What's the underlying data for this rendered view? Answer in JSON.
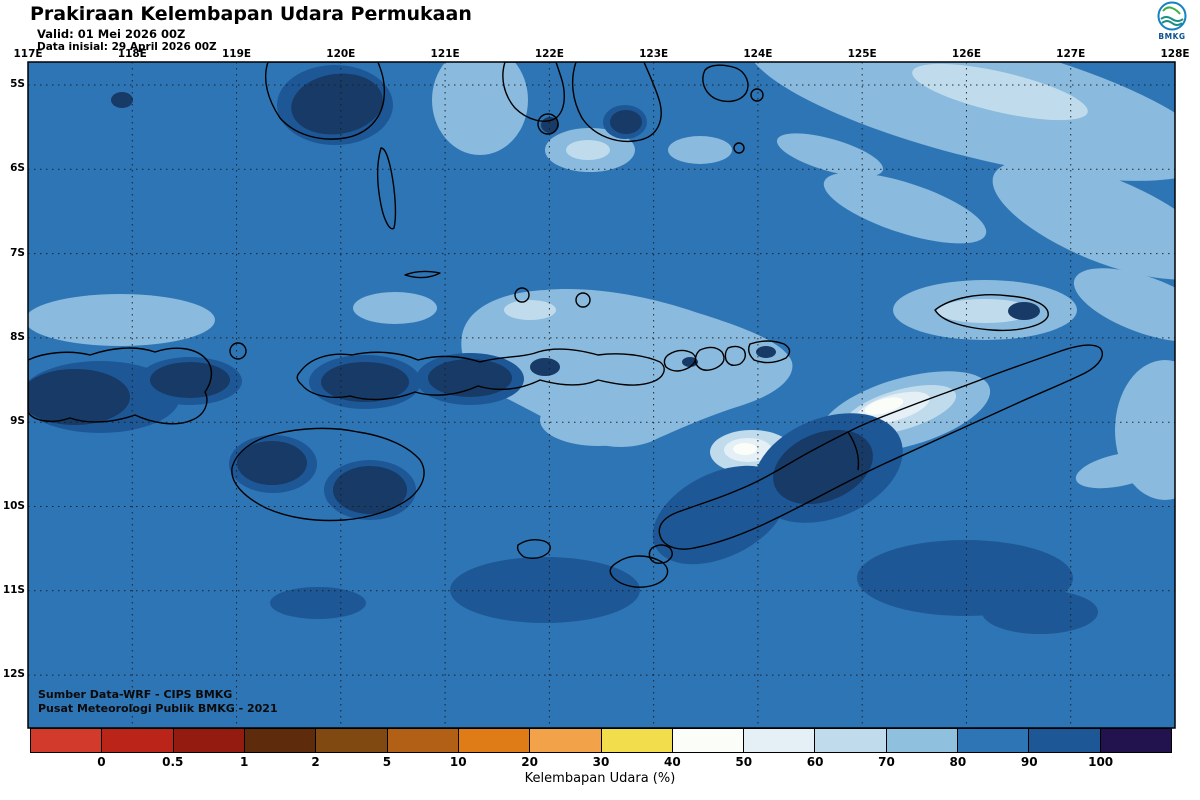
{
  "header": {
    "title": "Prakiraan Kelembapan Udara Permukaan",
    "valid": "Valid: 01 Mei 2026 00Z",
    "init": "Data inisial: 29 April 2026 00Z",
    "logo_text": "BMKG"
  },
  "map": {
    "lon_labels": [
      "117E",
      "118E",
      "119E",
      "120E",
      "121E",
      "122E",
      "123E",
      "124E",
      "125E",
      "126E",
      "127E",
      "128E"
    ],
    "lat_labels": [
      "5S",
      "6S",
      "7S",
      "8S",
      "9S",
      "10S",
      "11S",
      "12S"
    ],
    "source_line1": "Sumber Data-WRF - CIPS BMKG",
    "source_line2": "Pusat Meteorologi Publik BMKG -  2021"
  },
  "legend": {
    "title": "Kelembapan Udara (%)",
    "tick_labels": [
      "0",
      "0.5",
      "1",
      "2",
      "5",
      "10",
      "20",
      "30",
      "40",
      "50",
      "60",
      "70",
      "80",
      "90",
      "100"
    ],
    "segment_colors": [
      "#d23b2b",
      "#bb2418",
      "#931b10",
      "#5f2b0d",
      "#7f4911",
      "#b26015",
      "#e07c18",
      "#f2a349",
      "#f2de4c",
      "#fbfdf9",
      "#e4eff6",
      "#c0dcec",
      "#8fc0de",
      "#2e75b5",
      "#1d5796",
      "#22134f"
    ]
  },
  "palette": {
    "ocean_80_90": "#2e75b5",
    "patch_70_80": "#8abadd",
    "patch_60_70": "#c0dcec",
    "patch_50_60": "#e4eff6",
    "patch_40_50": "#fbfdf9",
    "patch_90_100": "#1d5796",
    "patch_max": "#173a66"
  }
}
